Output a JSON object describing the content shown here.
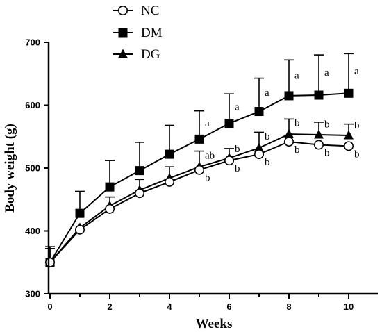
{
  "chart_data": {
    "type": "line",
    "xlabel": "Weeks",
    "ylabel": "Body weight (g)",
    "xlim": [
      0,
      11
    ],
    "ylim": [
      300,
      700
    ],
    "xticks": [
      0,
      2,
      4,
      6,
      8,
      10
    ],
    "yticks": [
      300,
      400,
      500,
      600,
      700
    ],
    "legend_position": "top-center",
    "x": [
      0,
      1,
      2,
      3,
      4,
      5,
      6,
      7,
      8,
      9,
      10
    ],
    "series": [
      {
        "name": "NC",
        "marker": "open-circle",
        "values": [
          350,
          402,
          435,
          460,
          478,
          497,
          512,
          522,
          542,
          537,
          535
        ],
        "error": [
          0,
          0,
          0,
          0,
          0,
          0,
          0,
          0,
          0,
          0,
          0
        ],
        "labels": [
          "",
          "",
          "",
          "",
          "",
          "b",
          "b",
          "b",
          "b",
          "b",
          "b"
        ]
      },
      {
        "name": "DM",
        "marker": "filled-square",
        "values": [
          350,
          428,
          470,
          496,
          522,
          546,
          571,
          590,
          615,
          616,
          619
        ],
        "error": [
          25,
          35,
          42,
          45,
          46,
          45,
          47,
          53,
          57,
          64,
          63
        ],
        "labels": [
          "",
          "",
          "",
          "",
          "",
          "a",
          "a",
          "a",
          "a",
          "a",
          "a"
        ]
      },
      {
        "name": "DG",
        "marker": "filled-triangle",
        "values": [
          350,
          405,
          440,
          465,
          484,
          502,
          516,
          532,
          554,
          553,
          552
        ],
        "error": [
          22,
          0,
          14,
          17,
          18,
          25,
          15,
          25,
          24,
          20,
          18
        ],
        "labels": [
          "",
          "",
          "",
          "",
          "",
          "ab",
          "b",
          "b",
          "b",
          "b",
          "b"
        ]
      }
    ]
  }
}
